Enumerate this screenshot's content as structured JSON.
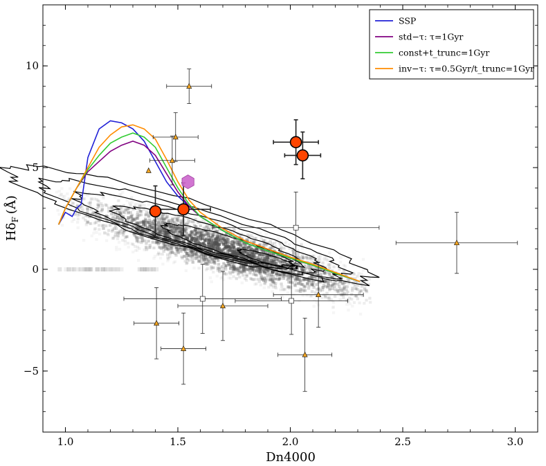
{
  "chart_data": {
    "type": "scatter",
    "xlabel": "Dn4000",
    "ylabel": "Hδ",
    "ylabel_subscript": "F",
    "ylabel_unit": "(Å)",
    "xlim": [
      0.9,
      3.1
    ],
    "ylim": [
      -8,
      13
    ],
    "x_ticks": [
      1.0,
      1.5,
      2.0,
      2.5,
      3.0
    ],
    "x_tick_labels": [
      "1.0",
      "1.5",
      "2.0",
      "2.5",
      "3.0"
    ],
    "y_ticks": [
      -5,
      0,
      5,
      10
    ],
    "y_tick_labels": [
      "−5",
      "0",
      "5",
      "10"
    ],
    "grid": false,
    "legend_position": "top-right",
    "legend": [
      {
        "label": "SSP",
        "color": "#1f1fd6"
      },
      {
        "label": "std−τ: τ=1Gyr",
        "color": "#800080"
      },
      {
        "label": "const+t_trunc=1Gyr",
        "color": "#33cc33"
      },
      {
        "label": "inv−τ: τ=0.5Gyr/t_trunc=1Gyr",
        "color": "#ff8c00"
      }
    ],
    "series": [
      {
        "name": "SSP",
        "color": "#1f1fd6",
        "x": [
          0.97,
          1.0,
          1.03,
          1.05,
          1.07,
          1.1,
          1.15,
          1.2,
          1.25,
          1.3,
          1.35,
          1.4,
          1.45,
          1.5,
          1.55,
          1.6,
          1.7,
          1.8,
          1.9,
          2.0,
          2.1,
          2.2,
          2.31
        ],
        "y": [
          2.2,
          2.8,
          2.6,
          3.0,
          3.2,
          5.5,
          6.9,
          7.3,
          7.2,
          6.9,
          6.3,
          5.3,
          4.3,
          3.6,
          3.1,
          2.6,
          1.9,
          1.3,
          0.9,
          0.55,
          0.2,
          -0.2,
          -0.6
        ]
      },
      {
        "name": "std−τ: τ=1Gyr",
        "color": "#800080",
        "x": [
          0.97,
          1.0,
          1.05,
          1.1,
          1.15,
          1.2,
          1.25,
          1.3,
          1.35,
          1.4,
          1.45,
          1.5,
          1.55,
          1.6,
          1.7,
          1.8,
          1.9,
          2.0,
          2.1,
          2.2,
          2.31
        ],
        "y": [
          2.2,
          3.0,
          4.0,
          4.8,
          5.3,
          5.8,
          6.1,
          6.3,
          6.1,
          5.6,
          4.7,
          3.8,
          3.1,
          2.6,
          1.9,
          1.3,
          0.9,
          0.55,
          0.2,
          -0.2,
          -0.6
        ]
      },
      {
        "name": "const+t_trunc=1Gyr",
        "color": "#33cc33",
        "x": [
          0.97,
          1.0,
          1.05,
          1.1,
          1.15,
          1.2,
          1.25,
          1.3,
          1.35,
          1.4,
          1.45,
          1.5,
          1.55,
          1.6,
          1.7,
          1.8,
          1.9,
          2.0,
          2.1,
          2.2,
          2.31
        ],
        "y": [
          2.2,
          3.0,
          4.0,
          4.9,
          5.6,
          6.2,
          6.5,
          6.7,
          6.5,
          6.0,
          5.0,
          4.0,
          3.2,
          2.6,
          1.9,
          1.3,
          0.9,
          0.55,
          0.2,
          -0.2,
          -0.6
        ]
      },
      {
        "name": "inv−τ: τ=0.5Gyr/t_trunc=1Gyr",
        "color": "#ff8c00",
        "x": [
          0.97,
          1.0,
          1.05,
          1.1,
          1.15,
          1.2,
          1.25,
          1.3,
          1.35,
          1.4,
          1.45,
          1.5,
          1.55,
          1.6,
          1.7,
          1.8,
          1.9,
          2.0,
          2.1,
          2.2,
          2.31
        ],
        "y": [
          2.2,
          3.0,
          4.0,
          5.0,
          6.0,
          6.6,
          7.0,
          7.1,
          6.9,
          6.4,
          5.4,
          4.3,
          3.4,
          2.8,
          2.0,
          1.4,
          1.0,
          0.6,
          0.25,
          -0.15,
          -0.6
        ]
      }
    ],
    "large_points": {
      "fill": "#ff4500",
      "points": [
        {
          "x": 1.4,
          "y": 2.85,
          "xerr": 0.0,
          "yerr": 1.25
        },
        {
          "x": 1.525,
          "y": 2.95,
          "xerr": 0.12,
          "yerr": 1.3
        },
        {
          "x": 2.025,
          "y": 6.25,
          "xerr": 0.1,
          "yerr": 1.1
        },
        {
          "x": 2.055,
          "y": 5.6,
          "xerr": 0.08,
          "yerr": 1.15
        }
      ]
    },
    "hexagon_point": {
      "x": 1.545,
      "y": 4.3,
      "fill": "#cc66cc"
    },
    "triangles": {
      "fill": "#f5a623",
      "points": [
        {
          "x": 1.55,
          "y": 9.0,
          "xerr": 0.1,
          "yerr": 0.85
        },
        {
          "x": 1.49,
          "y": 6.5,
          "xerr": 0.1,
          "yerr": 1.2
        },
        {
          "x": 1.475,
          "y": 5.35,
          "xerr": 0.1,
          "yerr": 1.2
        },
        {
          "x": 1.37,
          "y": 4.85,
          "xerr": 0.0,
          "yerr": 0.0
        },
        {
          "x": 2.74,
          "y": 1.3,
          "xerr": 0.27,
          "yerr": 1.5
        },
        {
          "x": 1.405,
          "y": -2.65,
          "xerr": 0.1,
          "yerr": 1.75
        },
        {
          "x": 1.525,
          "y": -3.9,
          "xerr": 0.1,
          "yerr": 1.75
        },
        {
          "x": 1.7,
          "y": -1.8,
          "xerr": 0.2,
          "yerr": 1.7
        },
        {
          "x": 2.065,
          "y": -4.2,
          "xerr": 0.12,
          "yerr": 1.8
        },
        {
          "x": 2.125,
          "y": -1.25,
          "xerr": 0.2,
          "yerr": 1.6
        }
      ]
    },
    "squares": {
      "fill": "#ffffff",
      "points": [
        {
          "x": 2.025,
          "y": 2.05,
          "xerr": 0.37,
          "yerr": 1.75
        },
        {
          "x": 1.61,
          "y": -1.45,
          "xerr": 0.35,
          "yerr": 1.7
        },
        {
          "x": 2.005,
          "y": -1.55,
          "xerr": 0.25,
          "yerr": 1.65
        }
      ]
    },
    "density_background": {
      "color": "#808080",
      "center_x": 1.7,
      "center_y": 1.0
    },
    "contours": {
      "color": "#000000",
      "levels": 6
    }
  }
}
